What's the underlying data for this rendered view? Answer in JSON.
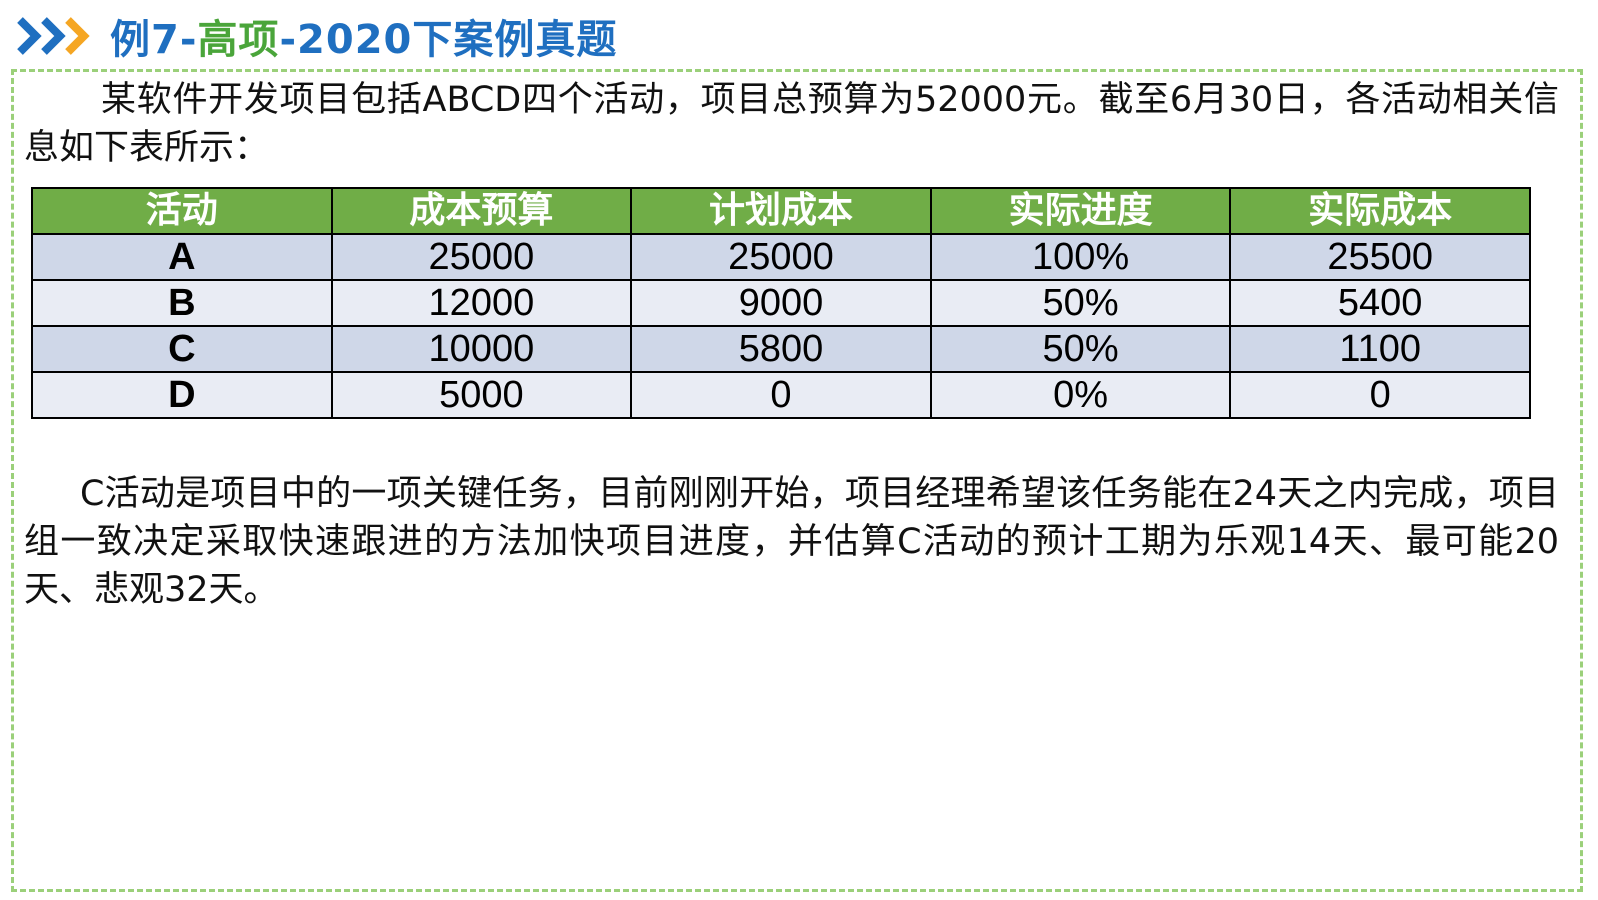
{
  "title": {
    "prefix": "例7-",
    "middle": "高项",
    "suffix": "-2020下案例真题",
    "colors": {
      "prefix": "#1f6fc0",
      "middle": "#4aa53a",
      "suffix": "#1f6fc0"
    }
  },
  "icons": {
    "title_marker": "double-chevron-icon"
  },
  "intro": "某软件开发项目包括ABCD四个活动，项目总预算为52000元。截至6月30日，各活动相关信息如下表所示：",
  "table": {
    "headers": [
      "活动",
      "成本预算",
      "计划成本",
      "实际进度",
      "实际成本"
    ],
    "rows": [
      [
        "A",
        "25000",
        "25000",
        "100%",
        "25500"
      ],
      [
        "B",
        "12000",
        "9000",
        "50%",
        "5400"
      ],
      [
        "C",
        "10000",
        "5800",
        "50%",
        "1100"
      ],
      [
        "D",
        "5000",
        "0",
        "0%",
        "0"
      ]
    ]
  },
  "outro": "C活动是项目中的一项关键任务，目前刚刚开始，项目经理希望该任务能在24天之内完成，项目组一致决定采取快速跟进的方法加快项目进度，并估算C活动的预计工期为乐观14天、最可能20天、悲观32天。",
  "colors": {
    "header_bg": "#70ad47",
    "row_odd_bg": "#cfd7e8",
    "row_even_bg": "#e9ecf4",
    "frame_border": "#9bd07a",
    "chevron_blue": "#1f6fc0",
    "chevron_orange": "#f5a623"
  }
}
